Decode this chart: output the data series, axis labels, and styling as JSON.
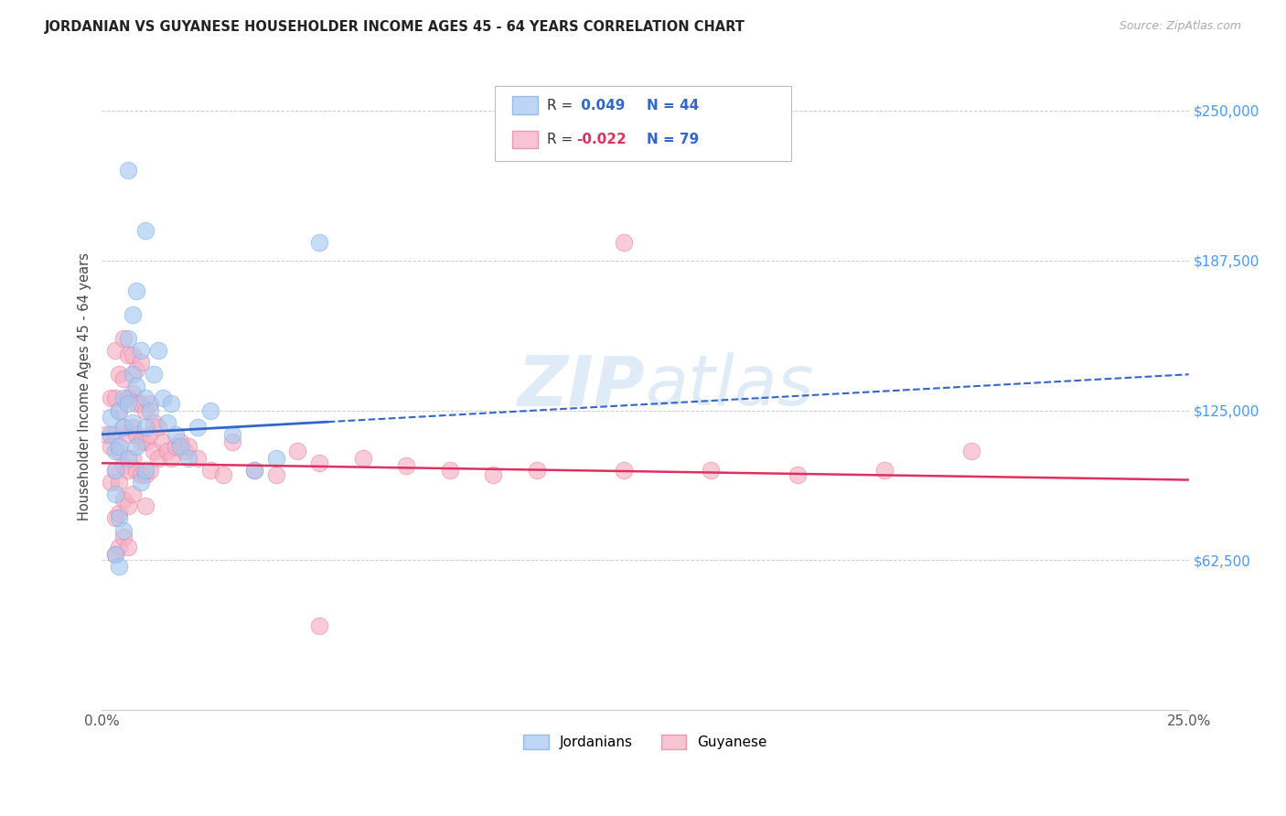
{
  "title": "JORDANIAN VS GUYANESE HOUSEHOLDER INCOME AGES 45 - 64 YEARS CORRELATION CHART",
  "source": "Source: ZipAtlas.com",
  "ylabel": "Householder Income Ages 45 - 64 years",
  "ytick_labels": [
    "$62,500",
    "$125,000",
    "$187,500",
    "$250,000"
  ],
  "ytick_values": [
    62500,
    125000,
    187500,
    250000
  ],
  "ylim": [
    0,
    270000
  ],
  "xlim": [
    0.0,
    0.25
  ],
  "r_jordan": 0.049,
  "n_jordan": 44,
  "r_guyana": -0.022,
  "n_guyana": 79,
  "jordan_color": "#a8c8f0",
  "jordan_edge_color": "#7aaee8",
  "guyana_color": "#f5b0c5",
  "guyana_edge_color": "#e880a0",
  "jordan_line_color": "#3366cc",
  "guyana_line_color": "#e03060",
  "background_color": "#ffffff",
  "grid_color": "#cccccc",
  "jordan_points_x": [
    0.002,
    0.002,
    0.003,
    0.003,
    0.003,
    0.004,
    0.004,
    0.004,
    0.005,
    0.005,
    0.005,
    0.006,
    0.006,
    0.006,
    0.007,
    0.007,
    0.007,
    0.008,
    0.008,
    0.009,
    0.009,
    0.01,
    0.01,
    0.01,
    0.011,
    0.012,
    0.013,
    0.014,
    0.015,
    0.016,
    0.017,
    0.018,
    0.02,
    0.022,
    0.025,
    0.03,
    0.035,
    0.04,
    0.006,
    0.008,
    0.01,
    0.003,
    0.004,
    0.05
  ],
  "jordan_points_y": [
    122000,
    115000,
    108000,
    100000,
    90000,
    125000,
    110000,
    80000,
    130000,
    118000,
    75000,
    155000,
    128000,
    105000,
    165000,
    140000,
    120000,
    135000,
    110000,
    150000,
    95000,
    130000,
    118000,
    100000,
    125000,
    140000,
    150000,
    130000,
    120000,
    128000,
    115000,
    110000,
    105000,
    118000,
    125000,
    115000,
    100000,
    105000,
    225000,
    175000,
    200000,
    65000,
    60000,
    195000
  ],
  "guyana_points_x": [
    0.001,
    0.002,
    0.002,
    0.002,
    0.003,
    0.003,
    0.003,
    0.003,
    0.003,
    0.004,
    0.004,
    0.004,
    0.004,
    0.004,
    0.004,
    0.005,
    0.005,
    0.005,
    0.005,
    0.005,
    0.005,
    0.006,
    0.006,
    0.006,
    0.006,
    0.006,
    0.006,
    0.007,
    0.007,
    0.007,
    0.007,
    0.007,
    0.008,
    0.008,
    0.008,
    0.008,
    0.009,
    0.009,
    0.009,
    0.009,
    0.01,
    0.01,
    0.01,
    0.01,
    0.011,
    0.011,
    0.011,
    0.012,
    0.012,
    0.013,
    0.013,
    0.014,
    0.015,
    0.016,
    0.017,
    0.018,
    0.019,
    0.02,
    0.022,
    0.025,
    0.028,
    0.03,
    0.035,
    0.04,
    0.045,
    0.05,
    0.06,
    0.07,
    0.08,
    0.09,
    0.1,
    0.12,
    0.14,
    0.16,
    0.18,
    0.2,
    0.12,
    0.05,
    0.003
  ],
  "guyana_points_y": [
    115000,
    130000,
    110000,
    95000,
    150000,
    130000,
    115000,
    100000,
    80000,
    140000,
    125000,
    108000,
    95000,
    82000,
    68000,
    155000,
    138000,
    118000,
    102000,
    88000,
    72000,
    148000,
    130000,
    115000,
    100000,
    85000,
    68000,
    148000,
    132000,
    118000,
    105000,
    90000,
    142000,
    128000,
    115000,
    100000,
    145000,
    128000,
    112000,
    98000,
    125000,
    112000,
    98000,
    85000,
    128000,
    115000,
    100000,
    120000,
    108000,
    118000,
    105000,
    112000,
    108000,
    105000,
    110000,
    112000,
    108000,
    110000,
    105000,
    100000,
    98000,
    112000,
    100000,
    98000,
    108000,
    103000,
    105000,
    102000,
    100000,
    98000,
    100000,
    195000,
    100000,
    98000,
    100000,
    108000,
    100000,
    35000,
    65000
  ]
}
